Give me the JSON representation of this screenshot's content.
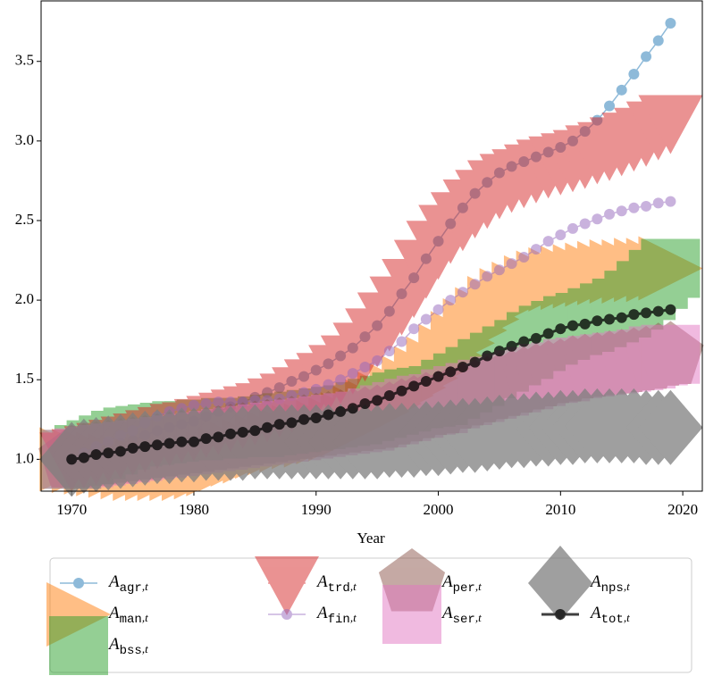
{
  "chart_data": {
    "type": "line",
    "x_label": "Year",
    "legend_symbol": "A",
    "legend_index": ",t",
    "xlim": [
      1967.5,
      2021.6
    ],
    "ylim": [
      0.8,
      3.88
    ],
    "xticks": [
      1970,
      1980,
      1990,
      2000,
      2010,
      2020
    ],
    "yticks": [
      {
        "value": 1,
        "label": "1.0"
      },
      {
        "value": 1.5,
        "label": "1.5"
      },
      {
        "value": 2,
        "label": "2.0"
      },
      {
        "value": 2.5,
        "label": "2.5"
      },
      {
        "value": 3,
        "label": "3.0"
      },
      {
        "value": 3.5,
        "label": "3.5"
      }
    ],
    "x": [
      1970,
      1971,
      1972,
      1973,
      1974,
      1975,
      1976,
      1977,
      1978,
      1979,
      1980,
      1981,
      1982,
      1983,
      1984,
      1985,
      1986,
      1987,
      1988,
      1989,
      1990,
      1991,
      1992,
      1993,
      1994,
      1995,
      1996,
      1997,
      1998,
      1999,
      2000,
      2001,
      2002,
      2003,
      2004,
      2005,
      2006,
      2007,
      2008,
      2009,
      2010,
      2011,
      2012,
      2013,
      2014,
      2015,
      2016,
      2017,
      2018,
      2019
    ],
    "series": [
      {
        "name": "agr",
        "color": "#1f77b4",
        "marker": "o",
        "values": [
          1.0,
          1.02,
          1.04,
          1.07,
          1.1,
          1.12,
          1.15,
          1.18,
          1.2,
          1.22,
          1.24,
          1.27,
          1.3,
          1.33,
          1.36,
          1.39,
          1.42,
          1.45,
          1.49,
          1.52,
          1.56,
          1.6,
          1.65,
          1.7,
          1.77,
          1.84,
          1.93,
          2.04,
          2.14,
          2.26,
          2.37,
          2.48,
          2.58,
          2.67,
          2.74,
          2.8,
          2.84,
          2.87,
          2.9,
          2.93,
          2.96,
          3.0,
          3.06,
          3.13,
          3.22,
          3.32,
          3.42,
          3.53,
          3.63,
          3.74
        ]
      },
      {
        "name": "man",
        "color": "#ff7f0e",
        "marker": ">",
        "values": [
          1.0,
          0.99,
          0.98,
          0.97,
          0.96,
          0.95,
          0.94,
          0.94,
          0.94,
          0.94,
          0.94,
          0.95,
          0.97,
          1.0,
          1.03,
          1.05,
          1.08,
          1.1,
          1.12,
          1.14,
          1.15,
          1.17,
          1.19,
          1.22,
          1.26,
          1.3,
          1.35,
          1.4,
          1.45,
          1.51,
          1.57,
          1.65,
          1.73,
          1.81,
          1.88,
          1.95,
          2.0,
          2.04,
          2.08,
          2.11,
          2.13,
          2.14,
          2.15,
          2.16,
          2.17,
          2.18,
          2.18,
          2.19,
          2.19,
          2.2
        ]
      },
      {
        "name": "bss",
        "color": "#2ca02c",
        "marker": "s",
        "values": [
          1.0,
          1.03,
          1.06,
          1.09,
          1.12,
          1.14,
          1.15,
          1.16,
          1.17,
          1.18,
          1.18,
          1.19,
          1.19,
          1.2,
          1.2,
          1.2,
          1.21,
          1.22,
          1.23,
          1.24,
          1.25,
          1.26,
          1.27,
          1.28,
          1.3,
          1.32,
          1.34,
          1.36,
          1.38,
          1.39,
          1.4,
          1.44,
          1.48,
          1.52,
          1.57,
          1.61,
          1.65,
          1.69,
          1.74,
          1.78,
          1.81,
          1.84,
          1.86,
          1.89,
          1.92,
          1.95,
          2.0,
          2.06,
          2.13,
          2.2
        ]
      },
      {
        "name": "trd",
        "color": "#d62728",
        "marker": "v",
        "values": [
          1.0,
          1.02,
          1.04,
          1.06,
          1.08,
          1.1,
          1.12,
          1.14,
          1.16,
          1.18,
          1.19,
          1.21,
          1.23,
          1.25,
          1.27,
          1.29,
          1.31,
          1.34,
          1.37,
          1.41,
          1.46,
          1.5,
          1.55,
          1.61,
          1.69,
          1.78,
          1.88,
          1.98,
          2.09,
          2.21,
          2.33,
          2.43,
          2.51,
          2.59,
          2.65,
          2.71,
          2.75,
          2.78,
          2.81,
          2.84,
          2.86,
          2.88,
          2.9,
          2.93,
          2.95,
          2.98,
          3.01,
          3.04,
          3.08,
          3.12
        ]
      },
      {
        "name": "fin",
        "color": "#9467bd",
        "marker": "o",
        "values": [
          1.0,
          1.04,
          1.08,
          1.11,
          1.15,
          1.18,
          1.23,
          1.27,
          1.3,
          1.32,
          1.34,
          1.35,
          1.36,
          1.36,
          1.36,
          1.37,
          1.37,
          1.38,
          1.4,
          1.42,
          1.44,
          1.47,
          1.5,
          1.54,
          1.58,
          1.62,
          1.68,
          1.74,
          1.82,
          1.88,
          1.94,
          2.0,
          2.05,
          2.1,
          2.15,
          2.19,
          2.23,
          2.27,
          2.32,
          2.37,
          2.41,
          2.45,
          2.48,
          2.51,
          2.54,
          2.56,
          2.58,
          2.59,
          2.61,
          2.62
        ]
      },
      {
        "name": "per",
        "color": "#8c564b",
        "marker": "p",
        "values": [
          1.0,
          1.01,
          1.02,
          1.03,
          1.04,
          1.05,
          1.06,
          1.07,
          1.08,
          1.09,
          1.1,
          1.11,
          1.12,
          1.13,
          1.14,
          1.15,
          1.16,
          1.17,
          1.18,
          1.19,
          1.2,
          1.21,
          1.22,
          1.23,
          1.24,
          1.25,
          1.27,
          1.29,
          1.31,
          1.33,
          1.34,
          1.37,
          1.39,
          1.41,
          1.43,
          1.45,
          1.47,
          1.49,
          1.51,
          1.53,
          1.54,
          1.56,
          1.57,
          1.58,
          1.59,
          1.6,
          1.61,
          1.62,
          1.64,
          1.65
        ]
      },
      {
        "name": "ser",
        "color": "#e377c2",
        "marker": "s",
        "values": [
          1.0,
          1.01,
          1.02,
          1.03,
          1.04,
          1.05,
          1.06,
          1.07,
          1.08,
          1.09,
          1.1,
          1.11,
          1.12,
          1.13,
          1.14,
          1.15,
          1.16,
          1.17,
          1.18,
          1.19,
          1.2,
          1.21,
          1.22,
          1.23,
          1.24,
          1.26,
          1.28,
          1.3,
          1.32,
          1.34,
          1.35,
          1.38,
          1.4,
          1.42,
          1.44,
          1.46,
          1.48,
          1.5,
          1.52,
          1.54,
          1.55,
          1.57,
          1.58,
          1.59,
          1.6,
          1.61,
          1.62,
          1.63,
          1.65,
          1.66
        ]
      },
      {
        "name": "nps",
        "color": "#7f7f7f",
        "marker": "D",
        "values": [
          1.0,
          1.02,
          1.03,
          1.04,
          1.05,
          1.06,
          1.07,
          1.08,
          1.08,
          1.09,
          1.09,
          1.1,
          1.1,
          1.1,
          1.1,
          1.11,
          1.11,
          1.11,
          1.11,
          1.11,
          1.11,
          1.11,
          1.11,
          1.11,
          1.11,
          1.11,
          1.12,
          1.12,
          1.12,
          1.13,
          1.13,
          1.14,
          1.15,
          1.15,
          1.16,
          1.17,
          1.18,
          1.18,
          1.19,
          1.19,
          1.2,
          1.2,
          1.21,
          1.21,
          1.21,
          1.21,
          1.21,
          1.2,
          1.2,
          1.2
        ]
      },
      {
        "name": "tot",
        "color": "#000000",
        "marker": "o",
        "values": [
          1.0,
          1.01,
          1.03,
          1.04,
          1.05,
          1.07,
          1.08,
          1.09,
          1.1,
          1.11,
          1.11,
          1.13,
          1.14,
          1.16,
          1.17,
          1.18,
          1.2,
          1.22,
          1.23,
          1.25,
          1.26,
          1.28,
          1.3,
          1.32,
          1.35,
          1.37,
          1.4,
          1.43,
          1.46,
          1.49,
          1.52,
          1.55,
          1.58,
          1.61,
          1.65,
          1.68,
          1.71,
          1.74,
          1.76,
          1.79,
          1.82,
          1.84,
          1.85,
          1.87,
          1.88,
          1.89,
          1.91,
          1.92,
          1.93,
          1.94
        ]
      }
    ]
  }
}
